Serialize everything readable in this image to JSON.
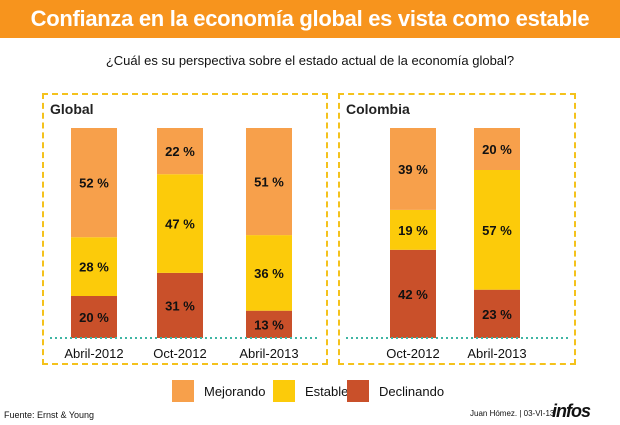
{
  "title": "Confianza en la economía global es vista como estable",
  "subtitle": "¿Cuál es su perspectiva sobre el estado actual de la economía global?",
  "colors": {
    "mejorando": "#f7a04b",
    "estable": "#fccb0a",
    "declinando": "#c9502a",
    "title_bg": "#f7941d",
    "border": "#f4c21c",
    "baseline": "#3fb5a4"
  },
  "legend": [
    {
      "label": "Mejorando",
      "color": "#f7a04b"
    },
    {
      "label": "Estable",
      "color": "#fccb0a"
    },
    {
      "label": "Declinando",
      "color": "#c9502a"
    }
  ],
  "source": "Fuente: Ernst & Young",
  "credit": "Juan Hómez. | 03-VI-13",
  "logo": "infos",
  "chart_data": [
    {
      "type": "bar",
      "stacked": true,
      "title": "Global",
      "categories": [
        "Abril-2012",
        "Oct-2012",
        "Abril-2013"
      ],
      "series": [
        {
          "name": "Declinando",
          "values": [
            20,
            31,
            13
          ]
        },
        {
          "name": "Estable",
          "values": [
            28,
            47,
            36
          ]
        },
        {
          "name": "Mejorando",
          "values": [
            52,
            22,
            51
          ]
        }
      ],
      "value_suffix": " %"
    },
    {
      "type": "bar",
      "stacked": true,
      "title": "Colombia",
      "categories": [
        "Oct-2012",
        "Abril-2013"
      ],
      "series": [
        {
          "name": "Declinando",
          "values": [
            42,
            23
          ]
        },
        {
          "name": "Estable",
          "values": [
            19,
            57
          ]
        },
        {
          "name": "Mejorando",
          "values": [
            39,
            20
          ]
        }
      ],
      "value_suffix": " %"
    }
  ]
}
